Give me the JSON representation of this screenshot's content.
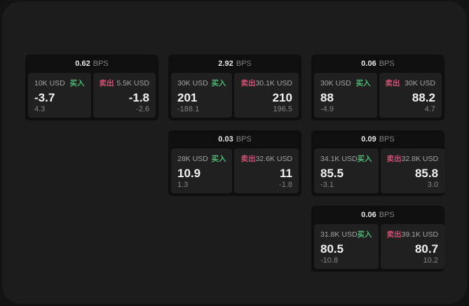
{
  "labels": {
    "bps_unit": "BPS",
    "buy": "买入",
    "sell": "卖出"
  },
  "colors": {
    "page_bg": "#131313",
    "panel_bg": "#1c1c1d",
    "card_bg": "#0f0f10",
    "tile_bg": "#202021",
    "buy_green": "#4cb873",
    "sell_red": "#d25072",
    "value_white": "#f2f2f2",
    "muted_gray": "#858585"
  },
  "cards": [
    {
      "bps": "0.62",
      "buy": {
        "amount": "10K USD",
        "value": "-3.7",
        "change": "4.3"
      },
      "sell": {
        "amount": "5.5K USD",
        "value": "-1.8",
        "change": "-2.6"
      }
    },
    {
      "bps": "2.92",
      "buy": {
        "amount": "30K USD",
        "value": "201",
        "change": "-188.1"
      },
      "sell": {
        "amount": "30.1K USD",
        "value": "210",
        "change": "196.5"
      }
    },
    {
      "bps": "0.06",
      "buy": {
        "amount": "30K USD",
        "value": "88",
        "change": "-4.9"
      },
      "sell": {
        "amount": "30K USD",
        "value": "88.2",
        "change": "4.7"
      }
    },
    {
      "bps": "0.03",
      "buy": {
        "amount": "28K USD",
        "value": "10.9",
        "change": "1.3"
      },
      "sell": {
        "amount": "32.6K USD",
        "value": "11",
        "change": "-1.8"
      }
    },
    {
      "bps": "0.09",
      "buy": {
        "amount": "34.1K USD",
        "value": "85.5",
        "change": "-3.1"
      },
      "sell": {
        "amount": "32.8K USD",
        "value": "85.8",
        "change": "3.0"
      }
    },
    {
      "bps": "0.06",
      "buy": {
        "amount": "31.8K USD",
        "value": "80.5",
        "change": "-10.8"
      },
      "sell": {
        "amount": "39.1K USD",
        "value": "80.7",
        "change": "10.2"
      }
    }
  ]
}
